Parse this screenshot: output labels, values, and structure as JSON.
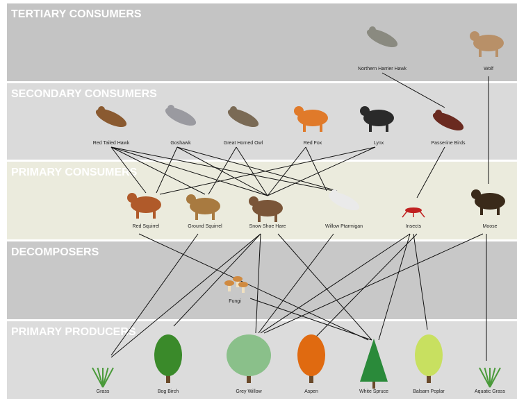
{
  "bands": [
    {
      "title": "TERTIARY CONSUMERS"
    },
    {
      "title": "SECONDARY CONSUMERS"
    },
    {
      "title": "PRIMARY CONSUMERS"
    },
    {
      "title": "DECOMPOSERS"
    },
    {
      "title": "PRIMARY PRODUCERS"
    }
  ],
  "nodes": [
    {
      "label": "Northern Harrier Hawk"
    },
    {
      "label": "Wolf"
    },
    {
      "label": "Red Tailed Hawk"
    },
    {
      "label": "Goshawk"
    },
    {
      "label": "Great Horned Owl"
    },
    {
      "label": "Red Fox"
    },
    {
      "label": "Lynx"
    },
    {
      "label": "Passerine Birds"
    },
    {
      "label": "Red Squirrel"
    },
    {
      "label": "Ground Squirrel"
    },
    {
      "label": "Snow Shoe Hare"
    },
    {
      "label": "Willow Ptarmigan"
    },
    {
      "label": "Insects"
    },
    {
      "label": "Moose"
    },
    {
      "label": "Fungi"
    },
    {
      "label": "Grass"
    },
    {
      "label": "Bog Birch"
    },
    {
      "label": "Grey Willow"
    },
    {
      "label": "Aspen"
    },
    {
      "label": "White Spruce"
    },
    {
      "label": "Balsam Poplar"
    },
    {
      "label": "Aquatic Grass"
    }
  ]
}
